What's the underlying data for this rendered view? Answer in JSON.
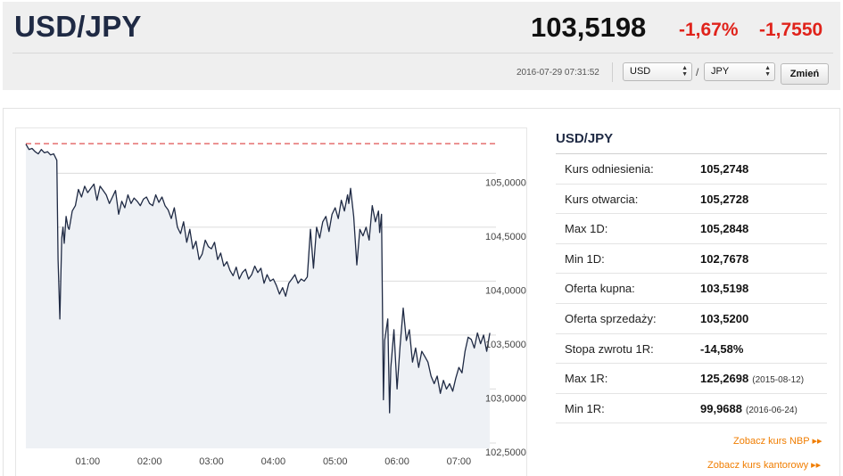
{
  "header": {
    "pair": "USD/JPY",
    "rate": "103,5198",
    "change_pct": "-1,67%",
    "change_abs": "-1,7550",
    "timestamp": "2016-07-29 07:31:52",
    "from_currency": "USD",
    "to_currency": "JPY",
    "separator": "/",
    "change_button": "Zmień"
  },
  "info": {
    "title": "USD/JPY",
    "rows": [
      {
        "label": "Kurs odniesienia:",
        "value": "105,2748"
      },
      {
        "label": "Kurs otwarcia:",
        "value": "105,2728"
      },
      {
        "label": "Max 1D:",
        "value": "105,2848"
      },
      {
        "label": "Min 1D:",
        "value": "102,7678"
      },
      {
        "label": "Oferta kupna:",
        "value": "103,5198"
      },
      {
        "label": "Oferta sprzedaży:",
        "value": "103,5200"
      },
      {
        "label": "Stopa zwrotu 1R:",
        "value": "-14,58%"
      },
      {
        "label": "Max 1R:",
        "value": "125,2698",
        "date": "(2015-08-12)"
      },
      {
        "label": "Min 1R:",
        "value": "99,9688",
        "date": "(2016-06-24)"
      }
    ],
    "link_nbp": "Zobacz kurs NBP ▸▸",
    "link_kantor": "Zobacz kurs kantorowy ▸▸"
  },
  "colors": {
    "line": "#1f2a44",
    "area": "#eef1f5",
    "reference": "#d62728",
    "negative": "#e0231b",
    "link": "#f07d00"
  },
  "chart_data": {
    "type": "line",
    "title": "",
    "xlabel": "",
    "ylabel": "",
    "ylim": [
      102.45,
      105.35
    ],
    "xlim": [
      0.0,
      7.6
    ],
    "x_ticks": [
      1,
      2,
      3,
      4,
      5,
      6,
      7
    ],
    "x_tick_labels": [
      "01:00",
      "02:00",
      "03:00",
      "04:00",
      "05:00",
      "06:00",
      "07:00"
    ],
    "y_ticks": [
      102.5,
      103.0,
      103.5,
      104.0,
      104.5,
      105.0
    ],
    "y_tick_labels": [
      "102,5000",
      "103,0000",
      "103,5000",
      "104,0000",
      "104,5000",
      "105,0000"
    ],
    "grid": true,
    "reference_line": 105.2748,
    "series": [
      {
        "x": [
          0.0,
          0.05,
          0.1,
          0.15,
          0.2,
          0.25,
          0.3,
          0.35,
          0.4,
          0.45,
          0.5,
          0.52,
          0.55,
          0.58,
          0.6,
          0.62,
          0.65,
          0.68,
          0.7,
          0.75,
          0.8,
          0.85,
          0.9,
          0.95,
          1.0,
          1.05,
          1.1,
          1.15,
          1.2,
          1.25,
          1.3,
          1.35,
          1.4,
          1.45,
          1.5,
          1.55,
          1.6,
          1.65,
          1.7,
          1.75,
          1.8,
          1.85,
          1.9,
          1.95,
          2.0,
          2.05,
          2.1,
          2.15,
          2.2,
          2.25,
          2.3,
          2.35,
          2.4,
          2.45,
          2.5,
          2.55,
          2.6,
          2.65,
          2.7,
          2.75,
          2.8,
          2.85,
          2.9,
          2.95,
          3.0,
          3.05,
          3.1,
          3.15,
          3.2,
          3.25,
          3.3,
          3.35,
          3.4,
          3.45,
          3.5,
          3.55,
          3.6,
          3.65,
          3.7,
          3.75,
          3.8,
          3.85,
          3.9,
          3.95,
          4.0,
          4.05,
          4.1,
          4.15,
          4.2,
          4.25,
          4.3,
          4.35,
          4.4,
          4.45,
          4.5,
          4.55,
          4.6,
          4.65,
          4.7,
          4.75,
          4.8,
          4.85,
          4.9,
          4.95,
          5.0,
          5.05,
          5.1,
          5.15,
          5.2,
          5.22,
          5.25,
          5.3,
          5.35,
          5.4,
          5.45,
          5.5,
          5.55,
          5.6,
          5.65,
          5.7,
          5.72,
          5.75,
          5.78,
          5.8,
          5.85,
          5.88,
          5.9,
          5.95,
          6.0,
          6.05,
          6.1,
          6.15,
          6.2,
          6.25,
          6.3,
          6.35,
          6.4,
          6.45,
          6.5,
          6.55,
          6.6,
          6.65,
          6.7,
          6.75,
          6.8,
          6.85,
          6.9,
          6.95,
          7.0,
          7.05,
          7.1,
          7.15,
          7.2,
          7.25,
          7.3,
          7.35,
          7.4,
          7.45,
          7.5
        ],
        "y": [
          105.27,
          105.22,
          105.23,
          105.2,
          105.18,
          105.22,
          105.19,
          105.2,
          105.17,
          105.18,
          105.12,
          104.2,
          103.65,
          104.4,
          104.5,
          104.35,
          104.6,
          104.5,
          104.48,
          104.65,
          104.7,
          104.85,
          104.78,
          104.88,
          104.82,
          104.86,
          104.9,
          104.75,
          104.88,
          104.84,
          104.8,
          104.72,
          104.78,
          104.84,
          104.62,
          104.74,
          104.68,
          104.8,
          104.72,
          104.77,
          104.74,
          104.7,
          104.76,
          104.78,
          104.72,
          104.7,
          104.8,
          104.73,
          104.78,
          104.7,
          104.66,
          104.58,
          104.68,
          104.5,
          104.44,
          104.55,
          104.36,
          104.48,
          104.3,
          104.37,
          104.2,
          104.25,
          104.38,
          104.32,
          104.3,
          104.36,
          104.2,
          104.26,
          104.14,
          104.18,
          104.1,
          104.05,
          104.13,
          104.02,
          104.08,
          104.11,
          104.02,
          104.06,
          104.14,
          104.08,
          104.12,
          103.98,
          104.06,
          104.0,
          104.02,
          103.96,
          103.88,
          103.94,
          103.86,
          103.98,
          104.02,
          104.06,
          103.98,
          104.02,
          104.0,
          104.04,
          104.48,
          104.12,
          104.5,
          104.4,
          104.55,
          104.6,
          104.46,
          104.62,
          104.68,
          104.58,
          104.75,
          104.65,
          104.8,
          104.72,
          104.86,
          104.6,
          104.15,
          104.48,
          104.42,
          104.5,
          104.38,
          104.7,
          104.55,
          104.65,
          104.45,
          104.62,
          102.9,
          103.45,
          103.65,
          102.78,
          103.2,
          103.55,
          103.0,
          103.4,
          103.75,
          103.45,
          103.55,
          103.25,
          103.38,
          103.2,
          103.35,
          103.3,
          103.25,
          103.12,
          103.05,
          103.12,
          102.96,
          103.08,
          103.0,
          103.05,
          102.98,
          103.1,
          103.2,
          103.15,
          103.35,
          103.48,
          103.46,
          103.38,
          103.52,
          103.42,
          103.5,
          103.35,
          103.52
        ]
      }
    ]
  }
}
